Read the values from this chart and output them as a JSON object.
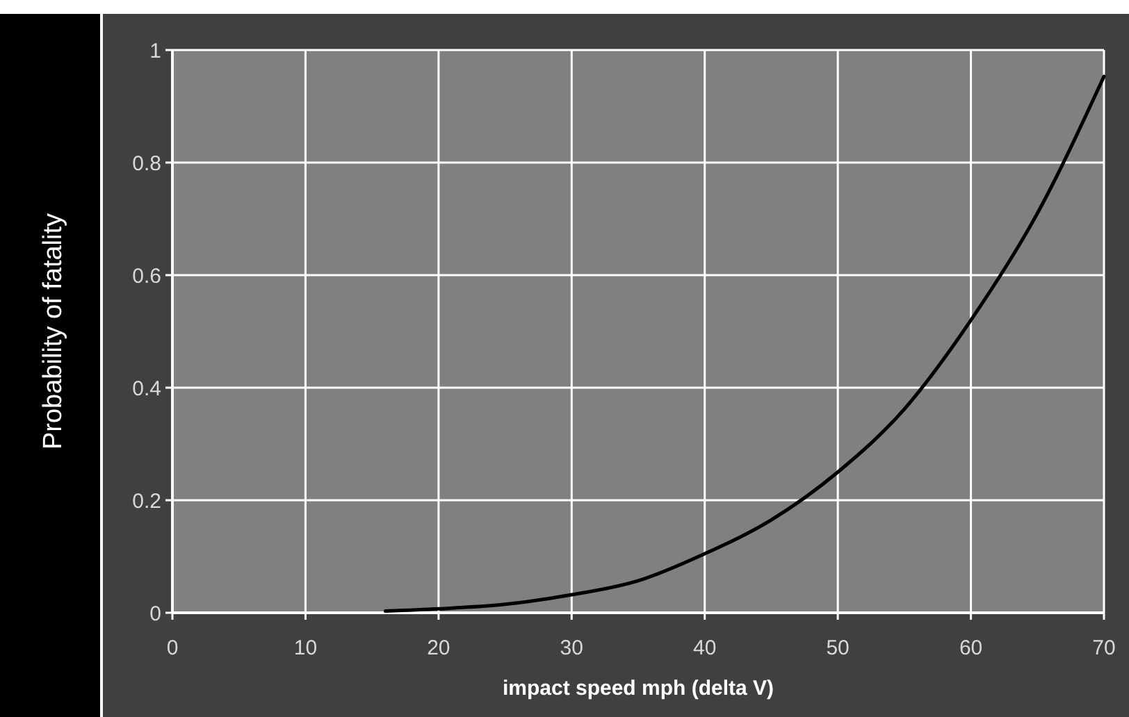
{
  "chart_data": {
    "type": "line",
    "xlabel": "impact speed mph (delta V)",
    "ylabel": "Probability of fatality",
    "x": [
      16,
      20,
      25,
      30,
      35,
      40,
      45,
      50,
      55,
      60,
      65,
      70
    ],
    "series": [
      {
        "color": "#000000",
        "values": [
          0.003,
          0.007,
          0.015,
          0.032,
          0.057,
          0.105,
          0.165,
          0.25,
          0.362,
          0.52,
          0.71,
          0.953
        ]
      }
    ],
    "xlim": [
      0,
      70
    ],
    "xticks": [
      0,
      10,
      20,
      30,
      40,
      50,
      60,
      70
    ],
    "ylim": [
      0,
      1
    ],
    "yticks": [
      0,
      0.2,
      0.4,
      0.6,
      0.8,
      1
    ],
    "grid": true
  }
}
